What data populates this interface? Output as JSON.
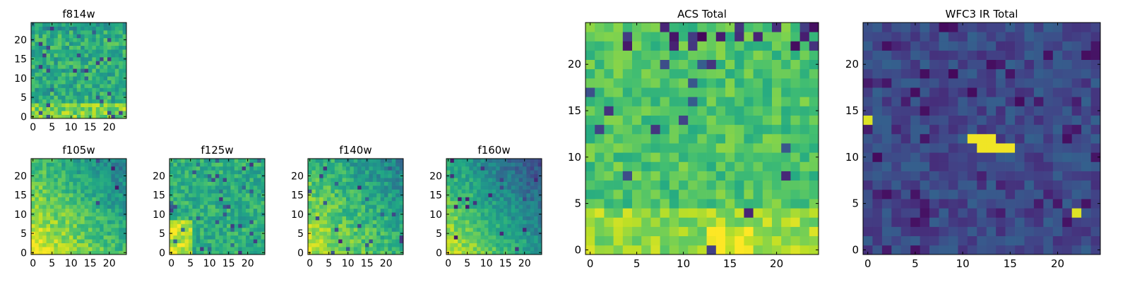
{
  "chart_data": [
    {
      "type": "heatmap",
      "title": "f814w",
      "grid_size": 25,
      "xticks": [
        0,
        5,
        10,
        15,
        20
      ],
      "yticks": [
        0,
        5,
        10,
        15,
        20
      ],
      "xlim": [
        -0.5,
        24.5
      ],
      "ylim": [
        -0.5,
        24.5
      ],
      "colormap": "viridis",
      "pattern": "noisy green-yellow, brighter toward bottom"
    },
    {
      "type": "heatmap",
      "title": "f105w",
      "grid_size": 25,
      "xticks": [
        0,
        5,
        10,
        15,
        20
      ],
      "yticks": [
        0,
        5,
        10,
        15,
        20
      ],
      "xlim": [
        -0.5,
        24.5
      ],
      "ylim": [
        -0.5,
        24.5
      ],
      "colormap": "viridis",
      "pattern": "bright yellow lower-left, darker upper-right"
    },
    {
      "type": "heatmap",
      "title": "f125w",
      "grid_size": 25,
      "xticks": [
        0,
        5,
        10,
        15,
        20
      ],
      "yticks": [
        0,
        5,
        10,
        15,
        20
      ],
      "xlim": [
        -0.5,
        24.5
      ],
      "ylim": [
        -0.5,
        24.5
      ],
      "colormap": "viridis",
      "pattern": "bright yellow lower-left, mottled green elsewhere"
    },
    {
      "type": "heatmap",
      "title": "f140w",
      "grid_size": 25,
      "xticks": [
        0,
        5,
        10,
        15,
        20
      ],
      "yticks": [
        0,
        5,
        10,
        15,
        20
      ],
      "xlim": [
        -0.5,
        24.5
      ],
      "ylim": [
        -0.5,
        24.5
      ],
      "colormap": "viridis",
      "pattern": "yellow lower-left, green-blue upper-right"
    },
    {
      "type": "heatmap",
      "title": "f160w",
      "grid_size": 25,
      "xticks": [
        0,
        5,
        10,
        15,
        20
      ],
      "yticks": [
        0,
        5,
        10,
        15,
        20
      ],
      "xlim": [
        -0.5,
        24.5
      ],
      "ylim": [
        -0.5,
        24.5
      ],
      "colormap": "viridis",
      "pattern": "yellow lower-left, dark blue-purple upper-right"
    },
    {
      "type": "heatmap",
      "title": "ACS Total",
      "grid_size": 25,
      "xticks": [
        0,
        5,
        10,
        15,
        20
      ],
      "yticks": [
        0,
        5,
        10,
        15,
        20
      ],
      "xlim": [
        -0.5,
        24.5
      ],
      "ylim": [
        -0.5,
        24.5
      ],
      "colormap": "viridis",
      "pattern": "mostly green-yellow with bright bottom region and scattered dark pixels at top"
    },
    {
      "type": "heatmap",
      "title": "WFC3 IR Total",
      "grid_size": 25,
      "xticks": [
        0,
        5,
        10,
        15,
        20
      ],
      "yticks": [
        0,
        5,
        10,
        15,
        20
      ],
      "xlim": [
        -0.5,
        24.5
      ],
      "ylim": [
        -0.5,
        24.5
      ],
      "colormap": "viridis",
      "pattern": "dark blue background with bright yellow source near (12, 11) and small spots at (0, 14) and (22, 4)"
    }
  ]
}
